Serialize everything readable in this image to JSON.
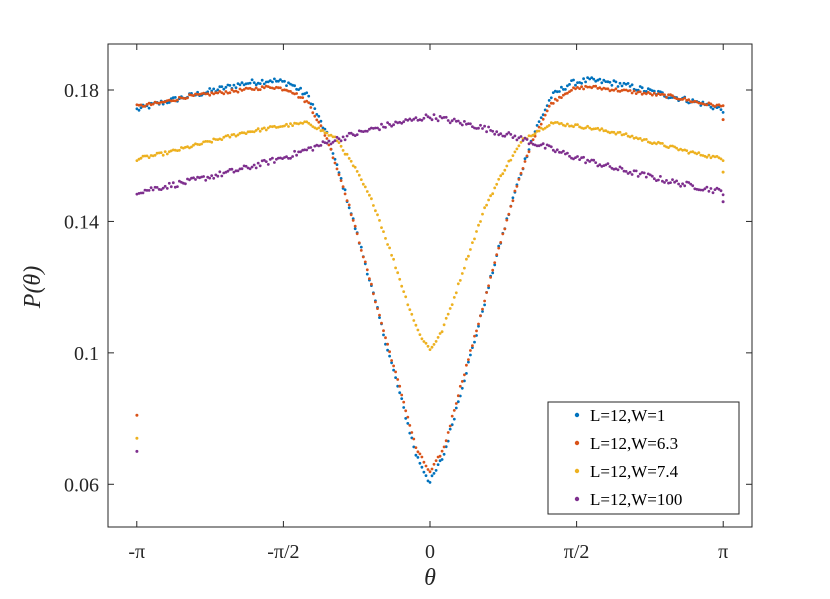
{
  "chart_data": {
    "type": "scatter",
    "title": "",
    "xlabel": "θ",
    "ylabel": "P(θ)",
    "xlim": [
      -3.45,
      3.45
    ],
    "ylim": [
      0.047,
      0.194
    ],
    "x_ticks": [
      {
        "value": -3.14159,
        "label": "-π"
      },
      {
        "value": -1.5708,
        "label": "-π/2"
      },
      {
        "value": 0,
        "label": "0"
      },
      {
        "value": 1.5708,
        "label": "π/2"
      },
      {
        "value": 3.14159,
        "label": "π"
      }
    ],
    "y_ticks": [
      {
        "value": 0.06,
        "label": "0.06"
      },
      {
        "value": 0.1,
        "label": "0.1"
      },
      {
        "value": 0.14,
        "label": "0.14"
      },
      {
        "value": 0.18,
        "label": "0.18"
      }
    ],
    "grid": false,
    "legend_position": "bottom-right",
    "series": [
      {
        "name": "L=12,W=1",
        "color": "#0072BD",
        "x": [
          -3.14,
          -2.9,
          -2.6,
          -2.3,
          -2.0,
          -1.7,
          -1.5,
          -1.3,
          -1.1,
          -0.9,
          -0.7,
          -0.5,
          -0.3,
          -0.15,
          0.0,
          0.15,
          0.3,
          0.5,
          0.7,
          0.9,
          1.1,
          1.3,
          1.5,
          1.7,
          2.0,
          2.3,
          2.6,
          2.9,
          3.14
        ],
        "y": [
          0.174,
          0.176,
          0.178,
          0.18,
          0.182,
          0.183,
          0.182,
          0.178,
          0.166,
          0.148,
          0.128,
          0.106,
          0.085,
          0.069,
          0.0605,
          0.069,
          0.085,
          0.106,
          0.128,
          0.148,
          0.166,
          0.178,
          0.182,
          0.183,
          0.182,
          0.18,
          0.178,
          0.176,
          0.174
        ],
        "outliers": []
      },
      {
        "name": "L=12,W=6.3",
        "color": "#D95319",
        "x": [
          -3.14,
          -2.9,
          -2.6,
          -2.3,
          -2.0,
          -1.7,
          -1.5,
          -1.3,
          -1.1,
          -0.9,
          -0.7,
          -0.5,
          -0.3,
          -0.15,
          0.0,
          0.15,
          0.3,
          0.5,
          0.7,
          0.9,
          1.1,
          1.3,
          1.5,
          1.7,
          2.0,
          2.3,
          2.6,
          2.9,
          3.14
        ],
        "y": [
          0.175,
          0.176,
          0.178,
          0.179,
          0.18,
          0.181,
          0.18,
          0.176,
          0.165,
          0.148,
          0.128,
          0.107,
          0.087,
          0.071,
          0.0635,
          0.071,
          0.087,
          0.107,
          0.128,
          0.148,
          0.165,
          0.176,
          0.18,
          0.181,
          0.18,
          0.179,
          0.178,
          0.176,
          0.175
        ],
        "outliers": [
          [
            -3.14,
            0.081
          ],
          [
            3.14,
            0.171
          ]
        ]
      },
      {
        "name": "L=12,W=7.4",
        "color": "#EDB120",
        "x": [
          -3.14,
          -2.8,
          -2.4,
          -2.0,
          -1.6,
          -1.3,
          -1.0,
          -0.8,
          -0.6,
          -0.4,
          -0.25,
          -0.12,
          0.0,
          0.12,
          0.25,
          0.4,
          0.6,
          0.8,
          1.0,
          1.3,
          1.6,
          2.0,
          2.4,
          2.8,
          3.14
        ],
        "y": [
          0.159,
          0.161,
          0.164,
          0.167,
          0.169,
          0.17,
          0.165,
          0.156,
          0.145,
          0.129,
          0.116,
          0.106,
          0.101,
          0.106,
          0.116,
          0.129,
          0.145,
          0.156,
          0.165,
          0.17,
          0.169,
          0.167,
          0.164,
          0.161,
          0.159
        ],
        "outliers": [
          [
            -3.14,
            0.074
          ],
          [
            3.14,
            0.155
          ]
        ]
      },
      {
        "name": "L=12,W=100",
        "color": "#7E2F8E",
        "x": [
          -3.14,
          -2.6,
          -2.0,
          -1.5,
          -1.0,
          -0.5,
          0.0,
          0.5,
          1.0,
          1.5,
          2.0,
          2.6,
          3.14
        ],
        "y": [
          0.149,
          0.152,
          0.156,
          0.16,
          0.165,
          0.169,
          0.172,
          0.169,
          0.165,
          0.16,
          0.156,
          0.152,
          0.149
        ],
        "outliers": [
          [
            -3.14,
            0.07
          ],
          [
            3.14,
            0.146
          ]
        ]
      }
    ]
  }
}
